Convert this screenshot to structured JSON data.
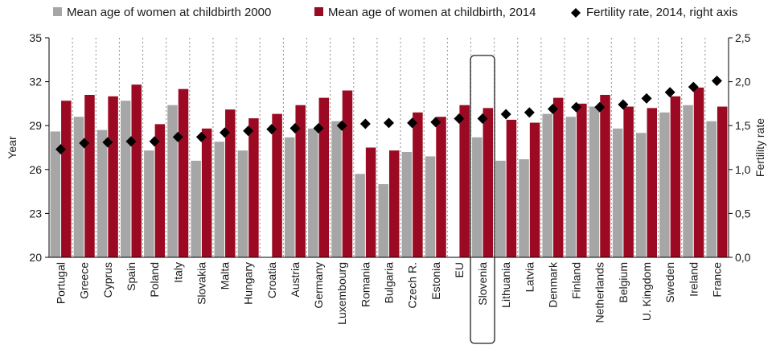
{
  "chart_data": {
    "type": "bar",
    "categories": [
      "Portugal",
      "Greece",
      "Cyprus",
      "Spain",
      "Poland",
      "Italy",
      "Slovakia",
      "Malta",
      "Hungary",
      "Croatia",
      "Austria",
      "Germany",
      "Luxembourg",
      "Romania",
      "Bulgaria",
      "Czech R.",
      "Estonia",
      "EU",
      "Slovenia",
      "Lithuania",
      "Latvia",
      "Denmark",
      "Finland",
      "Netherlands",
      "Belgium",
      "U. Kingdom",
      "Sweden",
      "Ireland",
      "France"
    ],
    "series": [
      {
        "name": "Mean age of women at childbirth 2000",
        "color": "#a6a6a6",
        "axis": "left",
        "values": [
          28.6,
          29.6,
          28.7,
          30.7,
          27.3,
          30.4,
          26.6,
          27.9,
          27.3,
          null,
          28.2,
          28.8,
          29.3,
          25.7,
          25.0,
          27.2,
          26.9,
          null,
          28.2,
          26.6,
          26.7,
          29.8,
          29.6,
          30.3,
          28.8,
          28.5,
          29.9,
          30.4,
          29.3
        ]
      },
      {
        "name": "Mean age of women at childbirth, 2014",
        "color": "#9b0a22",
        "axis": "left",
        "values": [
          30.7,
          31.1,
          31.0,
          31.8,
          29.1,
          31.5,
          28.8,
          30.1,
          29.5,
          29.8,
          30.4,
          30.9,
          31.4,
          27.5,
          27.3,
          29.9,
          29.6,
          30.4,
          30.2,
          29.4,
          29.2,
          30.9,
          30.5,
          31.1,
          30.3,
          30.2,
          31.0,
          31.6,
          30.3
        ]
      },
      {
        "name": "Fertility rate, 2014, right axis",
        "color": "#000000",
        "axis": "right",
        "marker": "diamond",
        "values": [
          1.23,
          1.3,
          1.31,
          1.32,
          1.32,
          1.37,
          1.37,
          1.42,
          1.44,
          1.46,
          1.47,
          1.47,
          1.5,
          1.52,
          1.53,
          1.53,
          1.54,
          1.58,
          1.58,
          1.63,
          1.65,
          1.69,
          1.71,
          1.71,
          1.74,
          1.81,
          1.88,
          1.94,
          2.01
        ]
      }
    ],
    "left_axis": {
      "label": "Year",
      "ylim": [
        20,
        35
      ],
      "ticks": [
        "20",
        "23",
        "26",
        "29",
        "32",
        "35"
      ]
    },
    "right_axis": {
      "label": "Fertility rate",
      "ylim": [
        0.0,
        2.5
      ],
      "ticks": [
        "0,0",
        "0,5",
        "1,0",
        "1,5",
        "2,0",
        "2,5"
      ]
    },
    "grid": "vertical",
    "legend": "top",
    "highlight": "Slovenia"
  }
}
